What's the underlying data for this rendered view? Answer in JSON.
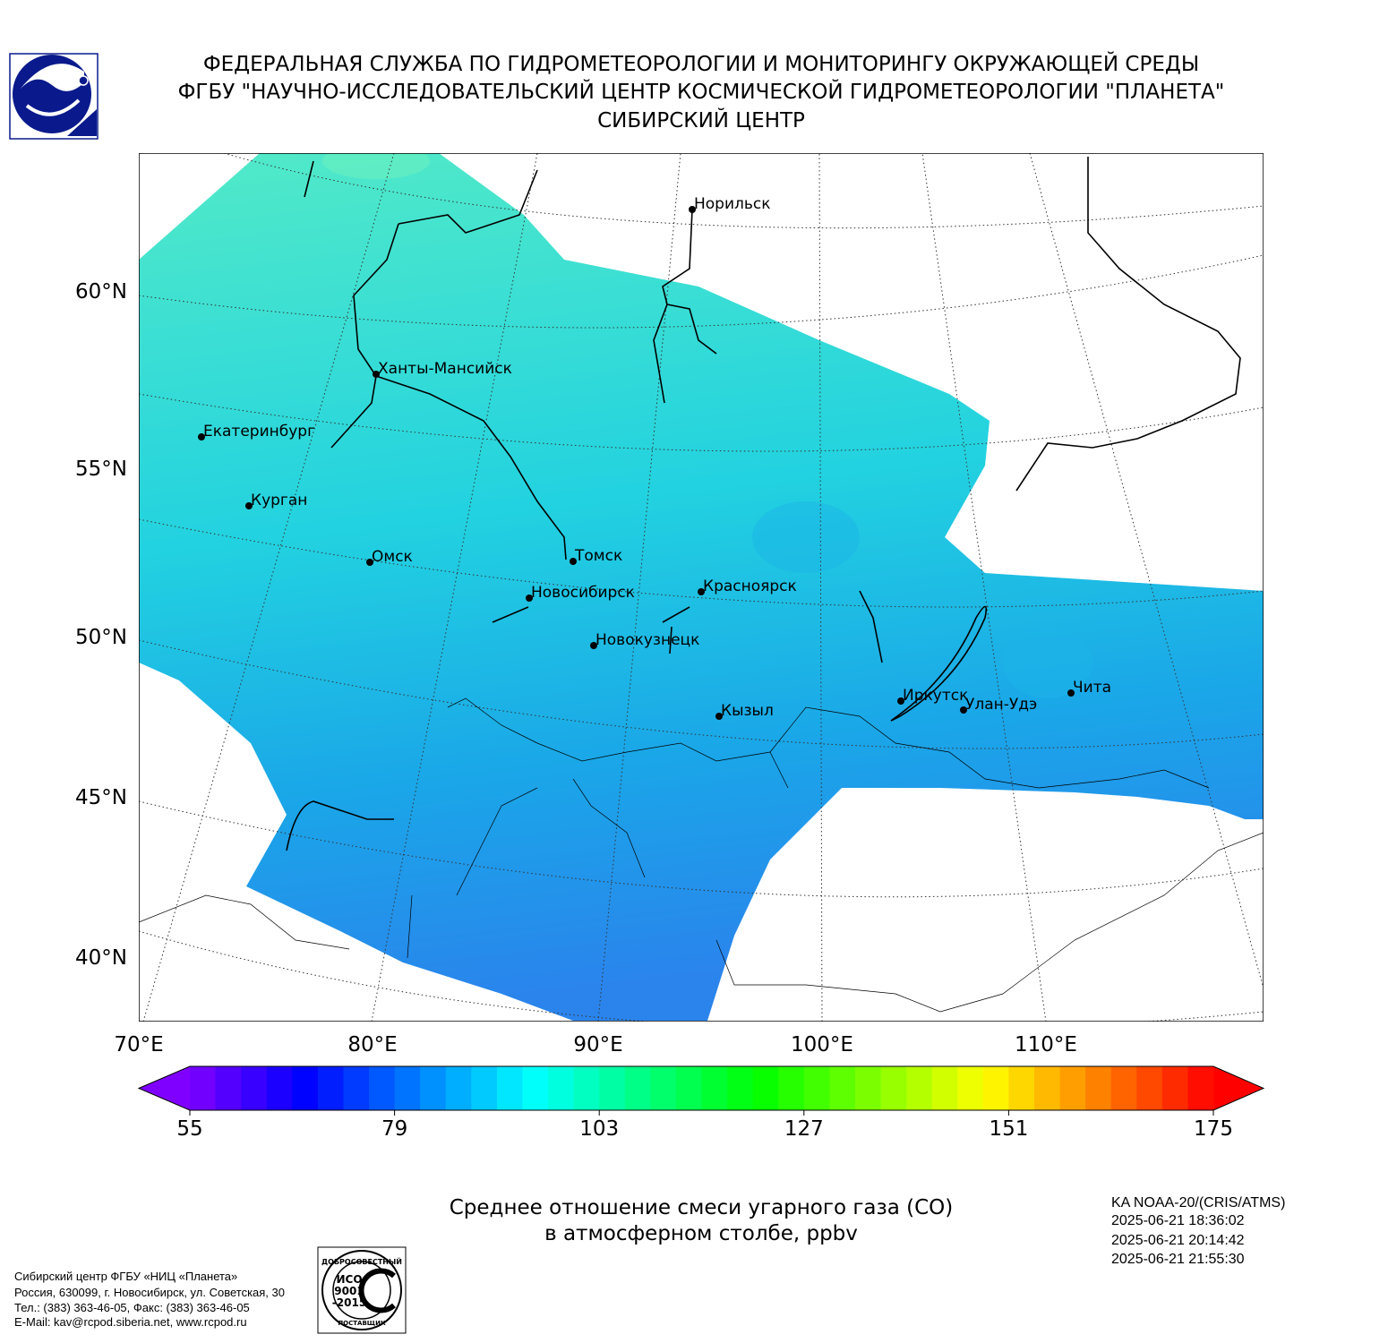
{
  "header": {
    "lines": [
      "ФЕДЕРАЛЬНАЯ СЛУЖБА ПО ГИДРОМЕТЕОРОЛОГИИ И МОНИТОРИНГУ ОКРУЖАЮЩЕЙ СРЕДЫ",
      "ФГБУ \"НАУЧНО-ИССЛЕДОВАТЕЛЬСКИЙ ЦЕНТР КОСМИЧЕСКОЙ ГИДРОМЕТЕОРОЛОГИИ \"ПЛАНЕТА\"",
      "СИБИРСКИЙ ЦЕНТР"
    ]
  },
  "map": {
    "lat_labels": [
      "60°N",
      "55°N",
      "50°N",
      "45°N",
      "40°N"
    ],
    "lon_labels": [
      "70°E",
      "80°E",
      "90°E",
      "100°E",
      "110°E"
    ],
    "cities": [
      "Норильск",
      "Ханты-Мансийск",
      "Екатеринбург",
      "Курган",
      "Омск",
      "Томск",
      "Новосибирск",
      "Красноярск",
      "Новокузнецк",
      "Кызыл",
      "Иркутск",
      "Улан-Удэ",
      "Чита"
    ]
  },
  "colorbar": {
    "lim": [
      55,
      175
    ],
    "ticks": [
      55,
      79,
      103,
      127,
      151,
      175
    ]
  },
  "caption": {
    "lines": [
      "Среднее отношение смеси угарного газа (CO)",
      "в атмосферном столбе, ppbv"
    ]
  },
  "satellite": {
    "lines": [
      "KA NOAA-20/(CRIS/ATMS)",
      "2025-06-21 18:36:02",
      "2025-06-21 20:14:42",
      "2025-06-21 21:55:30"
    ]
  },
  "footer": {
    "lines": [
      "Сибирский центр ФГБУ «НИЦ «Планета»",
      "Россия, 630099, г. Новосибирск, ул. Советская, 30",
      "Тел.: (383) 363-46-05, Факс: (383) 363-46-05",
      "E-Mail: kav@rcpod.siberia.net, www.rcpod.ru"
    ]
  },
  "iso_logo": {
    "top": "ДОБРОСОВЕСТНЫЙ",
    "center": [
      "ИСО",
      "9001",
      "-2015"
    ],
    "bottom": "ПОСТАВЩИК"
  }
}
